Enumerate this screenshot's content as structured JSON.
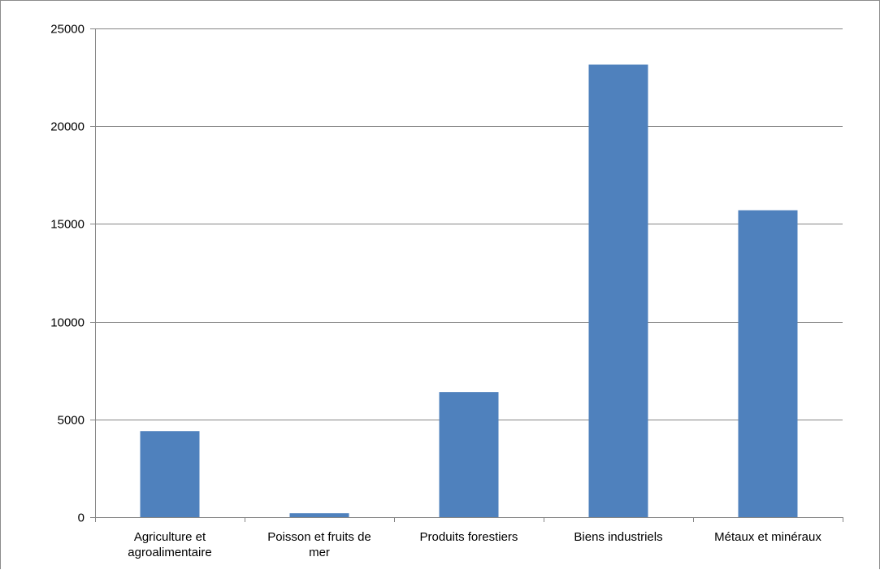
{
  "chart_data": {
    "type": "bar",
    "title": "",
    "xlabel": "",
    "ylabel": "",
    "categories": [
      [
        "Agriculture et",
        "agroalimentaire"
      ],
      [
        "Poisson et fruits de",
        "mer"
      ],
      [
        "Produits forestiers"
      ],
      [
        "Biens industriels"
      ],
      [
        "Métaux et minéraux"
      ]
    ],
    "values": [
      4400,
      200,
      6400,
      23150,
      15700
    ],
    "ylim": [
      0,
      25000
    ],
    "yticks": [
      0,
      5000,
      10000,
      15000,
      20000,
      25000
    ],
    "ytick_labels": [
      "0",
      "5000",
      "10000",
      "15000",
      "20000",
      "25000"
    ],
    "grid": true,
    "legend": "none",
    "colors": {
      "bar": "#4f81bd",
      "grid": "#868686",
      "axis": "#868686",
      "frame": "#8c8c8c",
      "text": "#000000"
    }
  }
}
